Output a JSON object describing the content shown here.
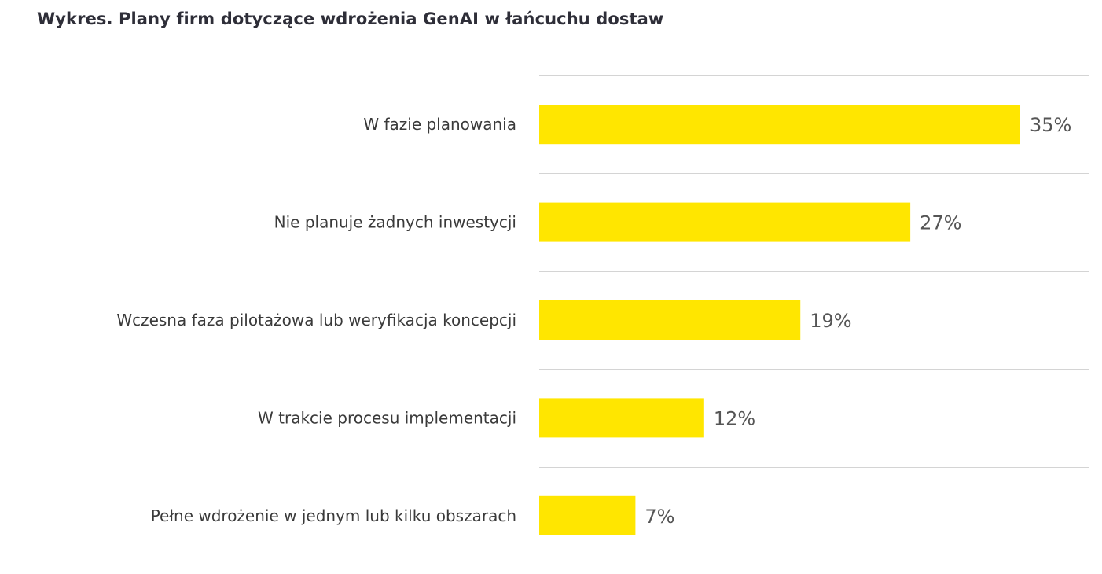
{
  "chart_data": {
    "type": "bar",
    "orientation": "horizontal",
    "title": "Wykres. Plany firm dotyczące wdrożenia GenAI w łańcuchu dostaw",
    "categories": [
      "W fazie planowania",
      "Nie planuje żadnych inwestycji",
      "Wczesna faza pilotażowa lub weryfikacja koncepcji",
      "W trakcie procesu implementacji",
      "Pełne wdrożenie w jednym lub kilku obszarach"
    ],
    "values": [
      35,
      27,
      19,
      12,
      7
    ],
    "value_labels": [
      "35%",
      "27%",
      "19%",
      "12%",
      "7%"
    ],
    "unit": "%",
    "xlim": [
      0,
      40
    ],
    "bar_color": "#ffe600",
    "grid": true,
    "legend": "none"
  }
}
